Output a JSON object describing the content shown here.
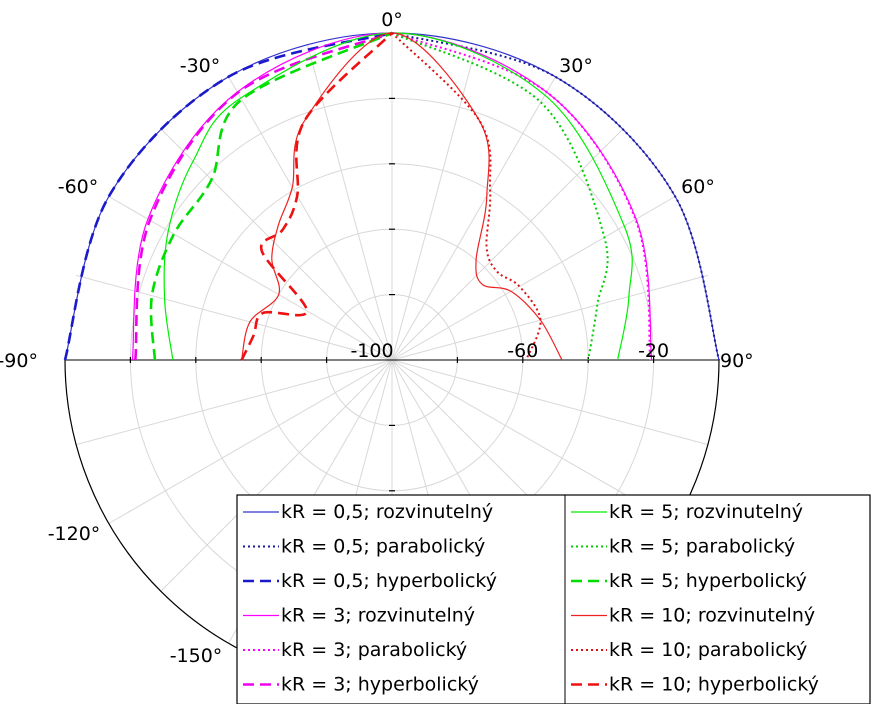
{
  "chart_data": {
    "type": "polar-line",
    "title": "",
    "angle_ticks": [
      "0°",
      "30°",
      "60°",
      "90°",
      "-30°",
      "-60°",
      "-90°",
      "-120°",
      "-150°"
    ],
    "radial_ticks": [
      "-100",
      "-60",
      "-20"
    ],
    "r_range": [
      -100,
      0
    ],
    "angle_range": [
      -180,
      90
    ],
    "grid": true,
    "legend_position": "bottom-right",
    "series": [
      {
        "name": "kR = 0,5; rozvinutelný",
        "color": "#3333cc",
        "dash": "solid",
        "theta": [
          -90,
          -60,
          -30,
          0,
          30,
          60,
          90
        ],
        "r": [
          0,
          0,
          0,
          0,
          0,
          0,
          0
        ]
      },
      {
        "name": "kR = 0,5; parabolický",
        "color": "#1a1a99",
        "dash": "dot",
        "theta": [
          0,
          30,
          60,
          90
        ],
        "r": [
          0,
          0,
          0,
          0
        ]
      },
      {
        "name": "kR = 0,5; hyperbolický",
        "color": "#1a1acc",
        "dash": "dash",
        "theta": [
          -90,
          -60,
          -30,
          0
        ],
        "r": [
          0,
          0,
          0,
          0
        ]
      },
      {
        "name": "kR = 3; rozvinutelný",
        "color": "#ff00ff",
        "dash": "solid",
        "theta": [
          -90,
          -60,
          -30,
          0,
          30,
          60,
          90
        ],
        "r": [
          -20.6,
          -13.8,
          -5.4,
          0,
          -5.4,
          -13.8,
          -20.6
        ]
      },
      {
        "name": "kR = 3; parabolický",
        "color": "#ff00ff",
        "dash": "dot",
        "theta": [
          0,
          30,
          60,
          90
        ],
        "r": [
          0,
          -5.4,
          -14,
          -21
        ]
      },
      {
        "name": "kR = 3; hyperbolický",
        "color": "#ee00ee",
        "dash": "dash",
        "theta": [
          -90,
          -60,
          -30,
          0
        ],
        "r": [
          -21.5,
          -14.5,
          -5.6,
          0
        ]
      },
      {
        "name": "kR = 5; rozvinutelný",
        "color": "#00ee00",
        "dash": "solid",
        "theta": [
          -90,
          -75,
          -60,
          -45,
          -30,
          0,
          30,
          60,
          75,
          90
        ],
        "r": [
          -33,
          -28,
          -21,
          -14,
          -7.5,
          0,
          -6.5,
          -18,
          -25,
          -31
        ]
      },
      {
        "name": "kR = 5; parabolický",
        "color": "#00cc00",
        "dash": "dot",
        "theta": [
          0,
          30,
          60,
          75,
          90
        ],
        "r": [
          0,
          -9,
          -25,
          -35,
          -40
        ]
      },
      {
        "name": "kR = 5; hyperbolický",
        "color": "#00dd00",
        "dash": "dash",
        "theta": [
          -90,
          -75,
          -60,
          -45,
          -30,
          0
        ],
        "r": [
          -27.5,
          -24,
          -23,
          -22,
          -8,
          0
        ]
      },
      {
        "name": "kR = 10; rozvinutelný",
        "color": "#ee2222",
        "dash": "solid",
        "theta": [
          -90,
          -75,
          -60,
          -50,
          -40,
          -30,
          -20,
          0,
          20,
          30,
          40,
          50,
          60,
          75,
          90
        ],
        "r": [
          -54,
          -55,
          -60,
          -52,
          -46,
          -39,
          -22,
          0,
          -22,
          -42,
          -60,
          -64,
          -58,
          -53,
          -48
        ]
      },
      {
        "name": "kR = 10; parabolický",
        "color": "#dd1111",
        "dash": "dot",
        "theta": [
          0,
          20,
          30,
          40,
          50,
          60,
          75,
          90
        ],
        "r": [
          0,
          -22,
          -40,
          -55,
          -58,
          -55,
          -53,
          -59
        ]
      },
      {
        "name": "kR = 10; hyperbolický",
        "color": "#ee1111",
        "dash": "dash",
        "theta": [
          -90,
          -80,
          -70,
          -60,
          -50,
          -40,
          -30,
          -20,
          0
        ],
        "r": [
          -54,
          -57,
          -58,
          -70,
          -48,
          -48,
          -42,
          -22,
          0
        ]
      }
    ]
  }
}
